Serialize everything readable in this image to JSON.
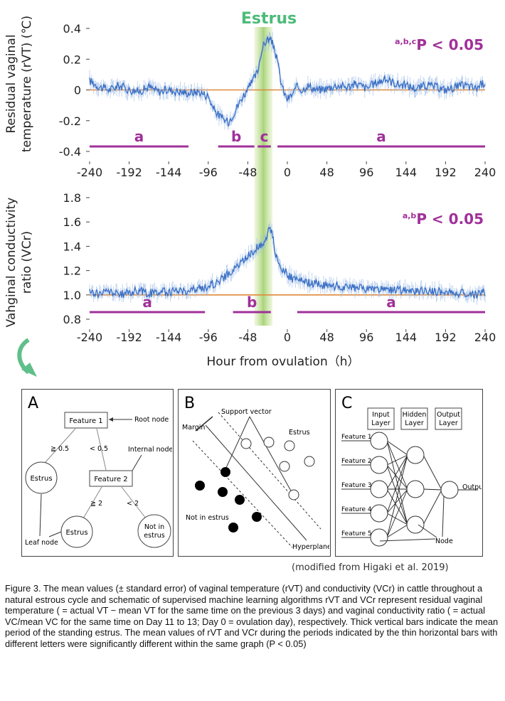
{
  "figure_title": "Estrus",
  "charts": {
    "rvt": {
      "ylabel_line1": "Residual vaginal",
      "ylabel_line2": "temperature (rVT) (℃)",
      "pvalue_sup": "a,b,c",
      "pvalue_text": "P < 0.05",
      "bar_letters": [
        "a",
        "b",
        "c",
        "a"
      ]
    },
    "vcr": {
      "ylabel_line1": "Vahginal conductivity",
      "ylabel_line2": "ratio (VCr)",
      "pvalue_sup": "a,b",
      "pvalue_text": "P < 0.05",
      "bar_letters": [
        "a",
        "b",
        "a"
      ]
    },
    "xlabel": "Hour from ovulation（h）"
  },
  "chart_data": [
    {
      "type": "line",
      "title": "",
      "xlabel": "",
      "ylabel": "Residual vaginal temperature (rVT) (℃)",
      "xlim": [
        -240,
        240
      ],
      "ylim": [
        -0.4,
        0.4
      ],
      "x_ticks": [
        -240,
        -192,
        -144,
        -96,
        -48,
        0,
        48,
        96,
        144,
        192,
        240
      ],
      "y_ticks": [
        -0.4,
        -0.2,
        0,
        0.2,
        0.4
      ],
      "y_tick_labels": [
        "-0.4",
        "-0.2",
        "0",
        "0.2",
        "0.4"
      ],
      "reference_line": 0,
      "estrus_band": [
        -40,
        -18
      ],
      "series": [
        {
          "x": [
            -240,
            -228,
            -216,
            -204,
            -192,
            -180,
            -168,
            -156,
            -144,
            -132,
            -120,
            -108,
            -96,
            -90,
            -84,
            -78,
            -72,
            -66,
            -60,
            -54,
            -48,
            -42,
            -36,
            -32,
            -28,
            -24,
            -20,
            -16,
            -12,
            -8,
            -4,
            0,
            6,
            12,
            18,
            24,
            36,
            48,
            60,
            72,
            84,
            96,
            108,
            120,
            132,
            144,
            156,
            168,
            180,
            192,
            204,
            216,
            228,
            240
          ],
          "y": [
            0.06,
            0.02,
            0.0,
            0.03,
            0.0,
            -0.01,
            0.02,
            -0.01,
            0.0,
            -0.01,
            -0.02,
            -0.01,
            -0.04,
            -0.12,
            -0.16,
            -0.19,
            -0.21,
            -0.16,
            -0.1,
            -0.04,
            0.0,
            0.06,
            0.12,
            0.24,
            0.3,
            0.33,
            0.32,
            0.28,
            0.18,
            0.06,
            -0.02,
            -0.06,
            -0.03,
            0.02,
            0.0,
            0.03,
            0.0,
            0.01,
            0.03,
            0.02,
            0.04,
            0.01,
            0.05,
            0.07,
            0.04,
            0.03,
            0.01,
            0.03,
            0.02,
            0.0,
            0.02,
            0.03,
            0.01,
            0.05
          ]
        }
      ],
      "significance_bars": [
        {
          "label": "a",
          "x": [
            -240,
            -120
          ]
        },
        {
          "label": "b",
          "x": [
            -84,
            -40
          ]
        },
        {
          "label": "c",
          "x": [
            -36,
            -20
          ]
        },
        {
          "label": "a",
          "x": [
            -12,
            240
          ]
        }
      ]
    },
    {
      "type": "line",
      "title": "",
      "xlabel": "Hour from ovulation（h）",
      "ylabel": "Vahginal conductivity ratio (VCr)",
      "xlim": [
        -240,
        240
      ],
      "ylim": [
        0.8,
        1.8
      ],
      "x_ticks": [
        -240,
        -192,
        -144,
        -96,
        -48,
        0,
        48,
        96,
        144,
        192,
        240
      ],
      "y_ticks": [
        0.8,
        1.0,
        1.2,
        1.4,
        1.6,
        1.8
      ],
      "y_tick_labels": [
        "0.8",
        "1.0",
        "1.2",
        "1.4",
        "1.6",
        "1.8"
      ],
      "reference_line": 1.0,
      "estrus_band": [
        -40,
        -18
      ],
      "series": [
        {
          "x": [
            -240,
            -228,
            -216,
            -204,
            -192,
            -180,
            -168,
            -156,
            -144,
            -132,
            -120,
            -108,
            -96,
            -84,
            -72,
            -60,
            -54,
            -48,
            -42,
            -36,
            -30,
            -26,
            -22,
            -18,
            -14,
            -10,
            -6,
            0,
            6,
            12,
            18,
            24,
            36,
            48,
            60,
            72,
            84,
            96,
            108,
            120,
            132,
            144,
            156,
            168,
            180,
            192,
            204,
            216,
            228,
            240
          ],
          "y": [
            1.02,
            1.01,
            1.03,
            1.0,
            1.02,
            1.04,
            1.01,
            1.03,
            1.02,
            1.04,
            1.03,
            1.05,
            1.07,
            1.11,
            1.17,
            1.24,
            1.28,
            1.32,
            1.36,
            1.39,
            1.42,
            1.46,
            1.58,
            1.48,
            1.33,
            1.27,
            1.21,
            1.17,
            1.13,
            1.12,
            1.11,
            1.1,
            1.09,
            1.08,
            1.07,
            1.06,
            1.06,
            1.05,
            1.05,
            1.04,
            1.04,
            1.04,
            1.03,
            1.03,
            1.03,
            1.02,
            1.02,
            1.01,
            1.0,
            1.02
          ]
        }
      ],
      "significance_bars": [
        {
          "label": "a",
          "x": [
            -240,
            -100
          ]
        },
        {
          "label": "b",
          "x": [
            -66,
            -20
          ]
        },
        {
          "label": "a",
          "x": [
            12,
            240
          ]
        }
      ]
    }
  ],
  "diagramA": {
    "label": "A",
    "feature1": "Feature 1",
    "feature2": "Feature 2",
    "root_node": "Root node",
    "internal_node": "Internal node",
    "leaf_node": "Leaf node",
    "ge05": "≧ 0.5",
    "lt05": "< 0.5",
    "ge2": "≧ 2",
    "lt2": "< 2",
    "estrus_left": "Estrus",
    "estrus_mid": "Estrus",
    "not_in1": "Not in",
    "not_in2": "estrus"
  },
  "diagramB": {
    "label": "B",
    "support_vector": "Support vector",
    "margin": "Margin",
    "estrus": "Estrus",
    "not_in_estrus": "Not in estrus",
    "hyperplane": "Hyperplane"
  },
  "diagramC": {
    "label": "C",
    "input1": "Input",
    "input2": "Layer",
    "hidden1": "Hidden",
    "hidden2": "Layer",
    "output1": "Output",
    "output2": "Layer",
    "features": [
      "Feature 1",
      "Feature 2",
      "Feature 3",
      "Feature 4",
      "Feature 5"
    ],
    "output": "Output",
    "node": "Node"
  },
  "colors": {
    "series": "#3a6fc4",
    "series_light": "#9bbbe8",
    "reference": "#e08a3c",
    "sig_bar": "#a0309a",
    "estrus_band": "#9fcf6a",
    "estrus_title": "#4dbb7a",
    "arrow": "#5fbf8a"
  },
  "credit": "(modified from Higaki et al. 2019)",
  "caption": "Figure 3. The mean values (± standard error) of vaginal temperature (rVT) and conductivity (VCr) in cattle throughout a natural estrous cycle and schematic of supervised machine learning algorithms rVT and VCr represent residual vaginal temperature ( = actual VT − mean VT for the same time on the previous 3 days) and vaginal conductivity ratio ( = actual VC/mean VC for the same time on Day 11 to 13; Day 0 = ovulation day), respectively.    Thick vertical bars indicate the mean period of the standing estrus. The mean values of rVT and VCr during the periods indicated by the thin horizontal bars with different letters were significantly different within the same graph (P < 0.05)"
}
